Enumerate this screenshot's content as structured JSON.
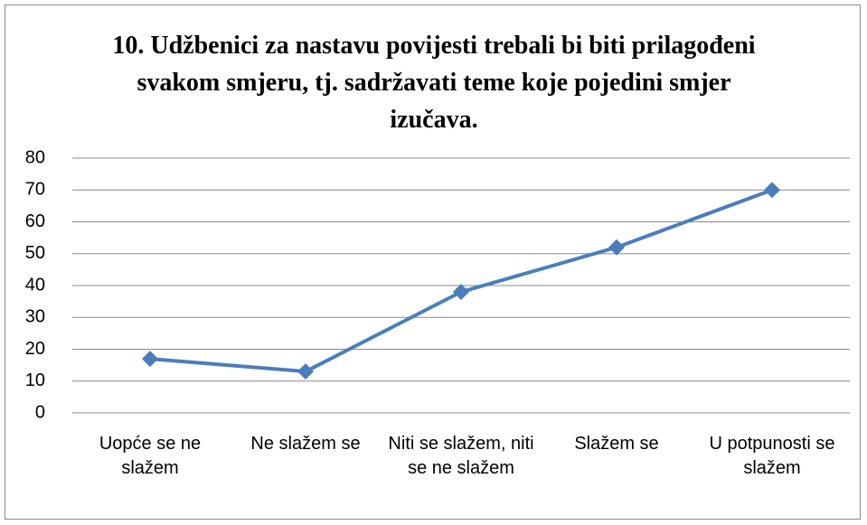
{
  "chart_data": {
    "type": "line",
    "title": "10. Udžbenici za nastavu povijesti trebali bi biti prilagođeni svakom smjeru, tj. sadržavati teme koje pojedini smjer izučava.",
    "categories": [
      "Uopće se ne slažem",
      "Ne slažem se",
      "Niti se slažem, niti se ne slažem",
      "Slažem se",
      "U potpunosti se slažem"
    ],
    "values": [
      17,
      13,
      38,
      52,
      70
    ],
    "color": "#4a7ebb",
    "ylim": [
      0,
      80
    ],
    "yticks": [
      0,
      10,
      20,
      30,
      40,
      50,
      60,
      70,
      80
    ],
    "grid": true
  }
}
